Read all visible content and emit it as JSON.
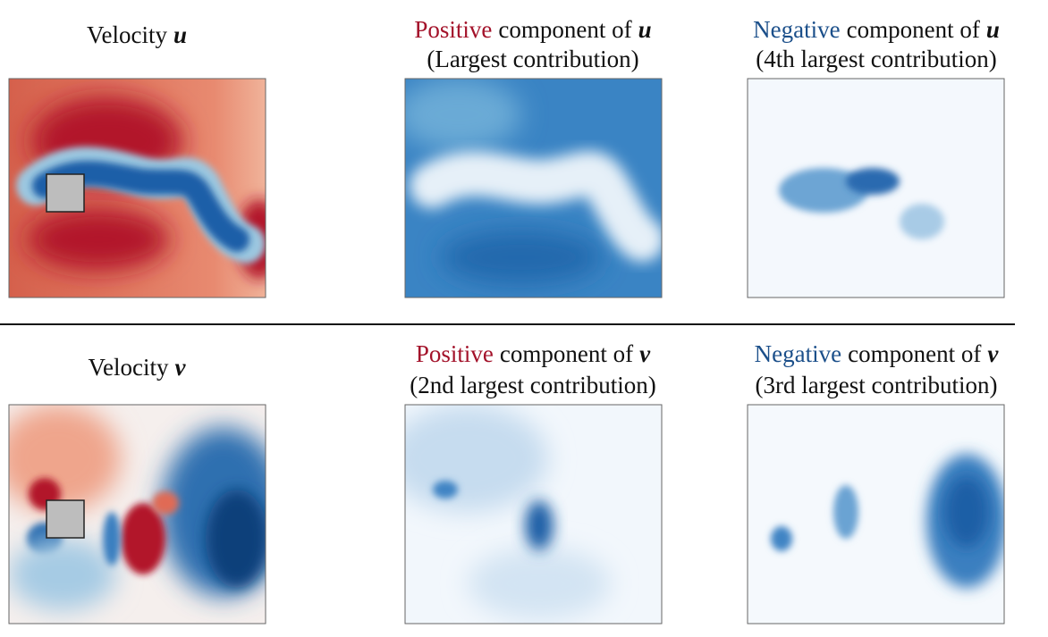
{
  "panels": [
    {
      "title": {
        "label": "Velocity",
        "symbol": "u"
      }
    },
    {
      "title": {
        "sign": "Positive",
        "label": "component of",
        "symbol": "u"
      },
      "subtitle": "(Largest contribution)"
    },
    {
      "title": {
        "sign": "Negative",
        "label": "component of",
        "symbol": "u"
      },
      "subtitle": "(4th largest contribution)"
    },
    {
      "title": {
        "label": "Velocity",
        "symbol": "v"
      }
    },
    {
      "title": {
        "sign": "Positive",
        "label": "component of",
        "symbol": "v"
      },
      "subtitle": "(2nd largest contribution)"
    },
    {
      "title": {
        "sign": "Negative",
        "label": "component of",
        "symbol": "v"
      },
      "subtitle": "(3rd largest contribution)"
    }
  ]
}
